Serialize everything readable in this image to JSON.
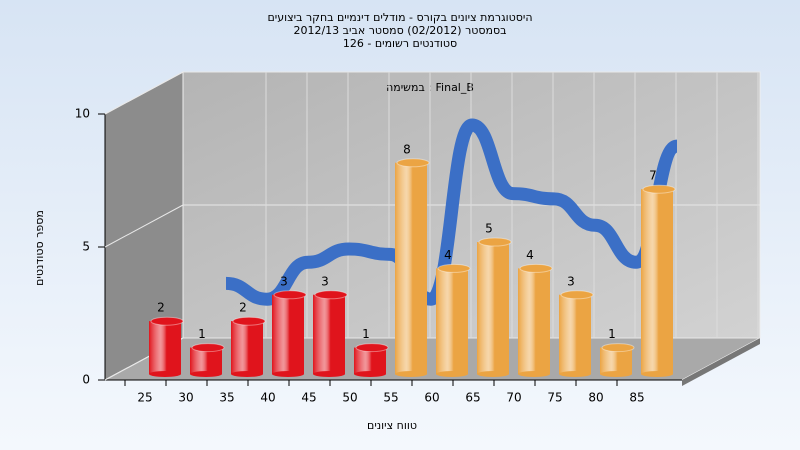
{
  "chart_data": {
    "type": "bar3d",
    "title_lines": [
      "היסטוגרמת ציונים בקורס - מודלים דינמיים בחקר ביצועים",
      "בסמסטר  (02/2012)  סמסטר אביב 2012/13",
      "סטודנטים רשומים - 126"
    ],
    "annotation": "במשימה : Final_B",
    "y_label": "מספר סטודנטים",
    "x_label": "טווח ציונים",
    "categories": [
      "25",
      "30",
      "35",
      "40",
      "45",
      "50",
      "55",
      "60",
      "65",
      "70",
      "75",
      "80",
      "85"
    ],
    "values": [
      2,
      1,
      2,
      3,
      3,
      1,
      8,
      4,
      5,
      4,
      3,
      1,
      7
    ],
    "colors": [
      "#e0141c",
      "#e0141c",
      "#e0141c",
      "#e0141c",
      "#e0141c",
      "#e0141c",
      "#eba443",
      "#eba443",
      "#eba443",
      "#eba443",
      "#eba443",
      "#eba443",
      "#eba443"
    ],
    "curve": {
      "values": [
        null,
        2.6,
        2,
        3.4,
        3.9,
        3.7,
        2,
        8.6,
        6,
        5.8,
        4.8,
        3.4,
        7.8
      ],
      "color": "#3b6fc6"
    },
    "ylim": [
      0,
      10
    ],
    "yticks": [
      0,
      5,
      10
    ],
    "grid": true
  }
}
